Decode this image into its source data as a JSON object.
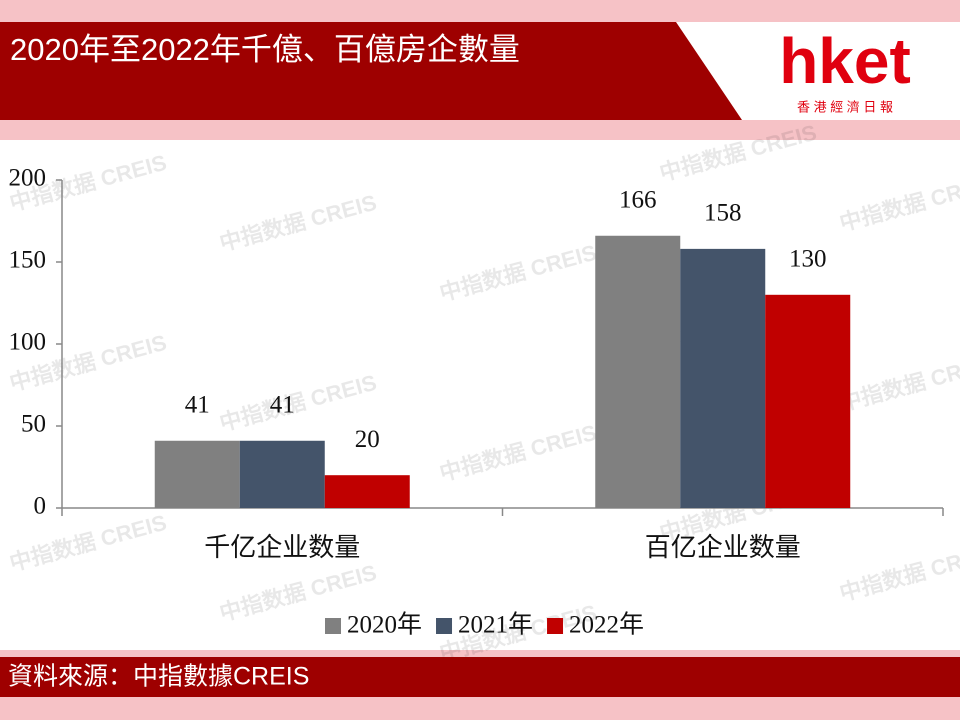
{
  "brand": {
    "logo": "hket",
    "name": "香 港 經 濟 日 報"
  },
  "chart_data": {
    "type": "bar",
    "title": "2020年至2022年千億、百億房企數量",
    "source": "資料來源：中指數據CREIS",
    "watermark": "中指数据 CREIS",
    "categories": [
      "千亿企业数量",
      "百亿企业数量"
    ],
    "series": [
      {
        "name": "2020年",
        "color": "#808080",
        "values": [
          41,
          166
        ]
      },
      {
        "name": "2021年",
        "color": "#44546a",
        "values": [
          41,
          158
        ]
      },
      {
        "name": "2022年",
        "color": "#c00000",
        "values": [
          20,
          130
        ]
      }
    ],
    "ylim": [
      0,
      200
    ],
    "yticks": [
      0,
      50,
      100,
      150,
      200
    ],
    "grid": false
  }
}
